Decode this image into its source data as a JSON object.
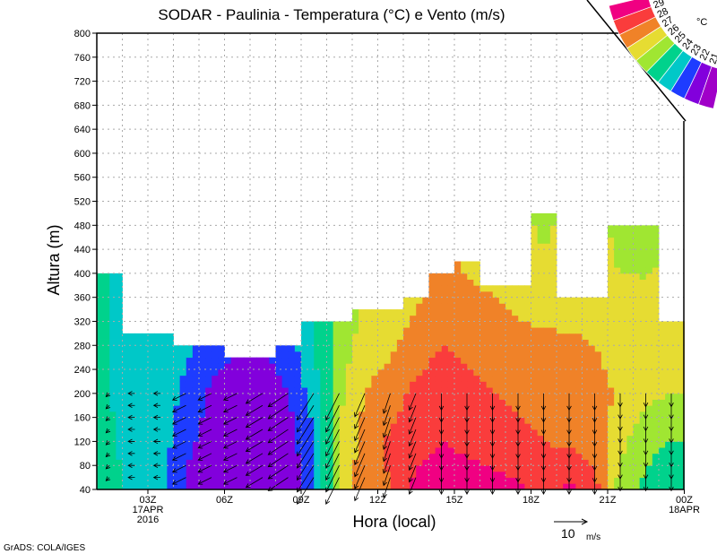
{
  "chart_data": {
    "type": "heatmap",
    "title": "SODAR - Paulinia - Temperatura (°C) e Vento (m/s)",
    "xlabel": "Hora (local)",
    "ylabel": "Altura (m)",
    "xlim": [
      1,
      24
    ],
    "ylim": [
      40,
      800
    ],
    "x_ticks": [
      {
        "hour": 3,
        "label": "03Z",
        "sub1": "17APR",
        "sub2": "2016"
      },
      {
        "hour": 6,
        "label": "06Z"
      },
      {
        "hour": 9,
        "label": "09Z"
      },
      {
        "hour": 12,
        "label": "12Z"
      },
      {
        "hour": 15,
        "label": "15Z"
      },
      {
        "hour": 18,
        "label": "18Z"
      },
      {
        "hour": 21,
        "label": "21Z"
      },
      {
        "hour": 24,
        "label": "00Z",
        "sub1": "18APR"
      }
    ],
    "y_ticks": [
      40,
      80,
      120,
      160,
      200,
      240,
      280,
      320,
      360,
      400,
      440,
      480,
      520,
      560,
      600,
      640,
      680,
      720,
      760,
      800
    ],
    "grid": true,
    "profile_heights": [
      40,
      120,
      200,
      280,
      360,
      440,
      500
    ],
    "columns": [
      {
        "hour": 1,
        "top": 400,
        "temp": [
          24.5,
          24.2,
          24.0,
          24.0,
          24.0
        ]
      },
      {
        "hour": 2,
        "top": 300,
        "temp": [
          23.5,
          23.5,
          23.5,
          23.5
        ]
      },
      {
        "hour": 3,
        "top": 300,
        "temp": [
          23.3,
          23.5,
          23.5,
          23.5
        ]
      },
      {
        "hour": 4,
        "top": 280,
        "temp": [
          21.8,
          22.3,
          22.8,
          23.2
        ]
      },
      {
        "hour": 5,
        "top": 280,
        "temp": [
          21.3,
          21.5,
          21.8,
          22.5
        ]
      },
      {
        "hour": 6,
        "top": 260,
        "temp": [
          21.3,
          21.4,
          21.5,
          22.0
        ]
      },
      {
        "hour": 7,
        "top": 260,
        "temp": [
          21.3,
          21.4,
          21.6,
          22.0
        ]
      },
      {
        "hour": 8,
        "top": 280,
        "temp": [
          21.5,
          21.6,
          22.0,
          22.5
        ]
      },
      {
        "hour": 9,
        "top": 320,
        "temp": [
          22.5,
          22.8,
          23.5,
          24.0
        ]
      },
      {
        "hour": 10,
        "top": 320,
        "temp": [
          26.5,
          26.0,
          25.8,
          25.5,
          25.0
        ]
      },
      {
        "hour": 11,
        "top": 340,
        "temp": [
          27.5,
          27.5,
          27.0,
          26.5,
          26.0
        ]
      },
      {
        "hour": 12,
        "top": 340,
        "temp": [
          28.0,
          28.2,
          27.5,
          26.8,
          26.5
        ]
      },
      {
        "hour": 13,
        "top": 360,
        "temp": [
          29.3,
          28.7,
          28.3,
          27.5,
          26.8
        ]
      },
      {
        "hour": 14,
        "top": 400,
        "temp": [
          29.5,
          29.0,
          28.5,
          28.0,
          27.5
        ]
      },
      {
        "hour": 15,
        "top": 420,
        "temp": [
          29.5,
          28.8,
          28.3,
          27.8,
          27.3,
          26.5
        ]
      },
      {
        "hour": 16,
        "top": 380,
        "temp": [
          29.3,
          28.6,
          28.0,
          27.5,
          27.0,
          26.5
        ]
      },
      {
        "hour": 17,
        "top": 380,
        "temp": [
          29.2,
          28.3,
          27.8,
          27.3,
          26.8,
          26.5
        ]
      },
      {
        "hour": 18,
        "top": 500,
        "temp": [
          28.5,
          28.0,
          27.5,
          27.2,
          26.6,
          26.0,
          25.5
        ]
      },
      {
        "hour": 19,
        "top": 360,
        "temp": [
          29.2,
          27.8,
          27.5,
          27.2,
          26.5
        ]
      },
      {
        "hour": 20,
        "top": 360,
        "temp": [
          28.5,
          27.5,
          27.5,
          27.0,
          26.5
        ]
      },
      {
        "hour": 21,
        "top": 480,
        "temp": [
          25.5,
          26.3,
          26.8,
          26.5,
          26.2,
          25.8,
          25.5
        ]
      },
      {
        "hour": 22,
        "top": 480,
        "temp": [
          24.8,
          25.3,
          26.2,
          26.3,
          26.3,
          25.6,
          25.5
        ]
      },
      {
        "hour": 23,
        "top": 320,
        "temp": [
          24.0,
          25.0,
          26.0,
          26.2
        ]
      }
    ],
    "wind": {
      "heights": [
        60,
        80,
        100,
        120,
        140,
        160,
        180,
        200
      ],
      "u": [
        -1,
        -2,
        -2,
        -4,
        -4,
        -4,
        -5,
        -6,
        -5,
        -4,
        -3,
        -2,
        -2,
        0,
        0,
        0,
        0,
        0,
        0,
        0,
        0,
        0,
        0
      ],
      "v": [
        -1,
        0,
        0,
        -2,
        -2,
        -2,
        -3,
        -4,
        -8,
        -8,
        -7,
        -6,
        -5,
        -5,
        -5,
        -5,
        -5,
        -5,
        -5,
        -5,
        -4,
        -4,
        -4
      ]
    },
    "wind_reference": {
      "value": 10,
      "label": "10",
      "unit": "m/s"
    },
    "colorbar": {
      "unit": "°C",
      "levels": [
        21,
        22,
        23,
        24,
        25,
        26,
        27,
        28,
        29
      ],
      "colors": [
        "#a000c8",
        "#8200dc",
        "#1e3cff",
        "#00c8c8",
        "#00d28c",
        "#a0e632",
        "#e6dc32",
        "#f08228",
        "#fa3c3c",
        "#f00082"
      ]
    }
  },
  "footer": "GrADS: COLA/IGES"
}
